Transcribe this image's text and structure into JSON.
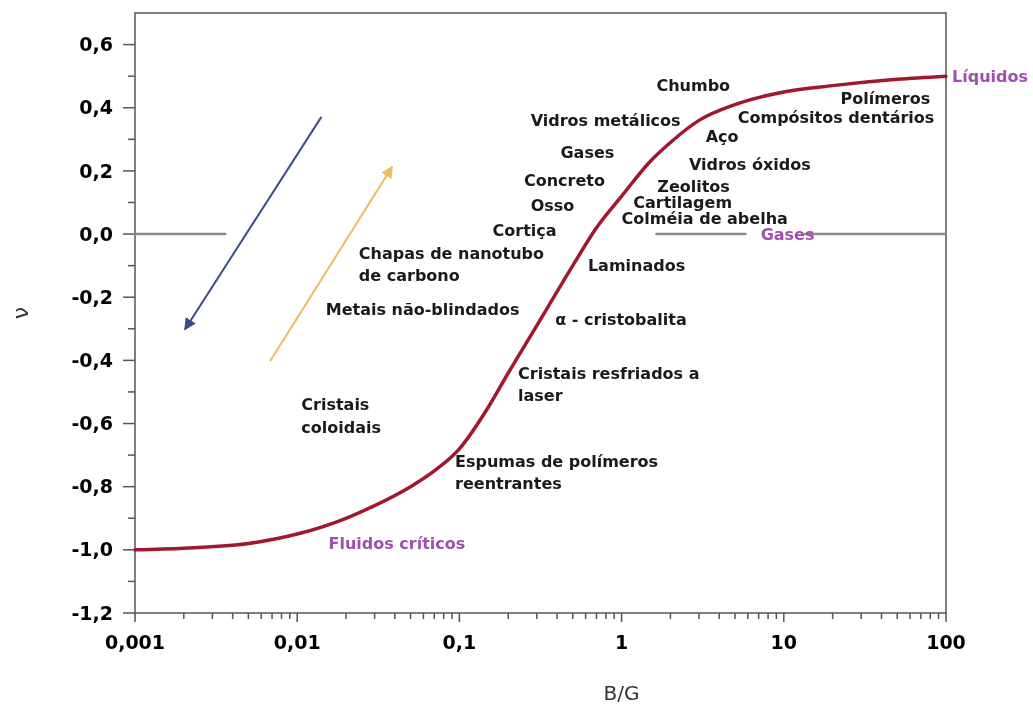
{
  "chart_data": {
    "type": "line",
    "xlabel": "B/G",
    "ylabel": "ν",
    "log": "x",
    "grid": false,
    "marker": "none",
    "line_style": "solid",
    "xlim": [
      0.001,
      100
    ],
    "ylim": [
      -1.2,
      0.7
    ],
    "xticks": [
      {
        "value": 0.001,
        "label": "0,001"
      },
      {
        "value": 0.002,
        "label": null
      },
      {
        "value": 0.003,
        "label": null
      },
      {
        "value": 0.004,
        "label": null
      },
      {
        "value": 0.005,
        "label": null
      },
      {
        "value": 0.006,
        "label": null
      },
      {
        "value": 0.007,
        "label": null
      },
      {
        "value": 0.008,
        "label": null
      },
      {
        "value": 0.009,
        "label": null
      },
      {
        "value": 0.01,
        "label": "0,01"
      },
      {
        "value": 0.02,
        "label": null
      },
      {
        "value": 0.03,
        "label": null
      },
      {
        "value": 0.04,
        "label": null
      },
      {
        "value": 0.05,
        "label": null
      },
      {
        "value": 0.06,
        "label": null
      },
      {
        "value": 0.07,
        "label": null
      },
      {
        "value": 0.08,
        "label": null
      },
      {
        "value": 0.09,
        "label": null
      },
      {
        "value": 0.1,
        "label": "0,1"
      },
      {
        "value": 0.2,
        "label": null
      },
      {
        "value": 0.3,
        "label": null
      },
      {
        "value": 0.4,
        "label": null
      },
      {
        "value": 0.5,
        "label": null
      },
      {
        "value": 0.6,
        "label": null
      },
      {
        "value": 0.7,
        "label": null
      },
      {
        "value": 0.8,
        "label": null
      },
      {
        "value": 0.9,
        "label": null
      },
      1,
      {
        "value": 2,
        "label": null
      },
      {
        "value": 3,
        "label": null
      },
      {
        "value": 4,
        "label": null
      },
      {
        "value": 5,
        "label": null
      },
      {
        "value": 6,
        "label": null
      },
      {
        "value": 7,
        "label": null
      },
      {
        "value": 8,
        "label": null
      },
      {
        "value": 9,
        "label": null
      },
      10,
      {
        "value": 20,
        "label": null
      },
      {
        "value": 30,
        "label": null
      },
      {
        "value": 40,
        "label": null
      },
      {
        "value": 50,
        "label": null
      },
      {
        "value": 60,
        "label": null
      },
      {
        "value": 70,
        "label": null
      },
      {
        "value": 80,
        "label": null
      },
      {
        "value": 90,
        "label": null
      },
      100
    ],
    "yticks": [
      {
        "value": -1.2,
        "label": "-1,2"
      },
      {
        "value": -1.1,
        "label": null
      },
      {
        "value": -1.0,
        "label": "-1,0"
      },
      {
        "value": -0.9,
        "label": null
      },
      {
        "value": -0.8,
        "label": "-0,8"
      },
      {
        "value": -0.7,
        "label": null
      },
      {
        "value": -0.6,
        "label": "-0,6"
      },
      {
        "value": -0.5,
        "label": null
      },
      {
        "value": -0.4,
        "label": "-0,4"
      },
      {
        "value": -0.3,
        "label": null
      },
      {
        "value": -0.2,
        "label": "-0,2"
      },
      {
        "value": -0.1,
        "label": null
      },
      {
        "value": 0,
        "label": "0,0"
      },
      {
        "value": 0.1,
        "label": null
      },
      {
        "value": 0.2,
        "label": "0,2"
      },
      {
        "value": 0.3,
        "label": null
      },
      {
        "value": 0.4,
        "label": "0,4"
      },
      {
        "value": 0.5,
        "label": null
      },
      {
        "value": 0.6,
        "label": "0,6"
      }
    ],
    "series": [
      {
        "color": "#a0182e",
        "x": [
          0.001,
          0.002,
          0.005,
          0.01,
          0.02,
          0.03,
          0.05,
          0.07,
          0.1,
          0.15,
          0.2,
          0.3,
          0.5,
          0.7,
          1,
          1.5,
          2,
          3,
          5,
          10,
          20,
          50,
          100
        ],
        "values": [
          -1.0,
          -0.995,
          -0.98,
          -0.95,
          -0.9,
          -0.86,
          -0.8,
          -0.75,
          -0.68,
          -0.55,
          -0.44,
          -0.29,
          -0.1,
          0.02,
          0.12,
          0.23,
          0.29,
          0.36,
          0.41,
          0.45,
          0.47,
          0.49,
          0.5
        ]
      },
      {
        "color": "#8a8a8a",
        "x": [
          0.001,
          0.0036,
          0.05,
          1.64,
          5.8,
          9,
          13.5,
          100
        ],
        "values": [
          0,
          0,
          null,
          0,
          0,
          null,
          0,
          0
        ]
      }
    ],
    "annotations": [
      "Chumbo",
      "Polímeros",
      "Compósitos dentários",
      "Vidros metálicos",
      "Aço",
      "Gases",
      "Vidros óxidos",
      "Concreto",
      "Zeolitos",
      "Cartilagem",
      "Osso",
      "Colméia de abelha",
      "Cortiça",
      "Gases",
      "Chapas de nanotubo\nde carbono",
      "Laminados",
      "Metais não-blindados",
      "α - cristobalita",
      "Cristais resfriados a\nlaser",
      "Cristais\ncoloidais",
      "Espumas de polímeros\nreentrantes",
      "Fluidos críticos",
      "Líquidos"
    ]
  }
}
